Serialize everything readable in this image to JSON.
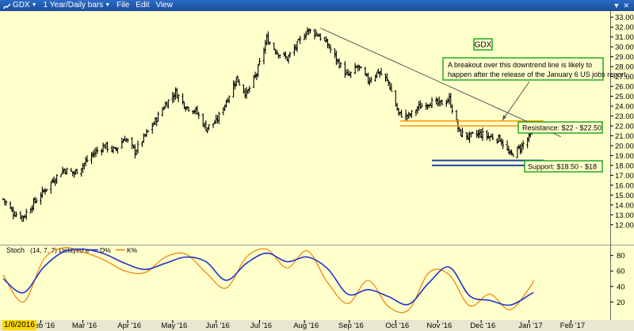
{
  "window": {
    "symbol": "GDX",
    "timeframe": "1 Year/Daily bars",
    "menus": [
      "File",
      "Edit",
      "View"
    ]
  },
  "colors": {
    "background": "#ffffcc",
    "bars": "#000000",
    "trendline": "#555555",
    "resistance": "#ff9900",
    "support": "#1f3fa8",
    "annotation_border": "#22aa22",
    "stoch_d": "#2233cc",
    "stoch_k": "#f08000"
  },
  "chart_data": [
    {
      "type": "ohlc",
      "title": "GDX",
      "ylim": [
        11.5,
        33.3
      ],
      "y_ticks": [
        "12.00",
        "13.00",
        "14.00",
        "15.00",
        "16.00",
        "17.00",
        "18.00",
        "19.00",
        "20.00",
        "21.00",
        "22.00",
        "23.00",
        "24.00",
        "25.00",
        "26.00",
        "27.00",
        "28.00",
        "29.00",
        "30.00",
        "31.00",
        "32.00",
        "33.00"
      ],
      "x_ticks": [
        "Feb '16",
        "Mar '16",
        "Apr '16",
        "May '16",
        "Jun '16",
        "Jul '16",
        "Aug '16",
        "Sep '16",
        "Oct '16",
        "Nov '16",
        "Dec '16",
        "Jan '17",
        "Feb '17"
      ],
      "current_date_label": "1/6/2016",
      "weekly_close": [
        [
          "2016-01-06",
          14.6
        ],
        [
          "2016-01-13",
          13.2
        ],
        [
          "2016-01-20",
          12.8
        ],
        [
          "2016-01-27",
          14.2
        ],
        [
          "2016-02-03",
          15.4
        ],
        [
          "2016-02-10",
          16.6
        ],
        [
          "2016-02-17",
          17.6
        ],
        [
          "2016-02-24",
          17.2
        ],
        [
          "2016-03-02",
          18.2
        ],
        [
          "2016-03-09",
          19.3
        ],
        [
          "2016-03-16",
          20.0
        ],
        [
          "2016-03-23",
          19.5
        ],
        [
          "2016-03-30",
          20.8
        ],
        [
          "2016-04-06",
          19.4
        ],
        [
          "2016-04-13",
          21.0
        ],
        [
          "2016-04-20",
          22.5
        ],
        [
          "2016-04-27",
          24.2
        ],
        [
          "2016-05-04",
          25.4
        ],
        [
          "2016-05-11",
          24.0
        ],
        [
          "2016-05-18",
          23.5
        ],
        [
          "2016-05-25",
          21.8
        ],
        [
          "2016-06-01",
          22.4
        ],
        [
          "2016-06-08",
          24.5
        ],
        [
          "2016-06-15",
          26.8
        ],
        [
          "2016-06-22",
          25.2
        ],
        [
          "2016-06-29",
          27.3
        ],
        [
          "2016-07-06",
          30.8
        ],
        [
          "2016-07-13",
          29.5
        ],
        [
          "2016-07-20",
          28.8
        ],
        [
          "2016-07-27",
          30.2
        ],
        [
          "2016-08-03",
          31.7
        ],
        [
          "2016-08-10",
          31.3
        ],
        [
          "2016-08-17",
          30.2
        ],
        [
          "2016-08-24",
          28.5
        ],
        [
          "2016-08-31",
          27.0
        ],
        [
          "2016-09-07",
          28.0
        ],
        [
          "2016-09-14",
          26.6
        ],
        [
          "2016-09-21",
          27.5
        ],
        [
          "2016-09-28",
          26.4
        ],
        [
          "2016-10-05",
          23.2
        ],
        [
          "2016-10-12",
          23.0
        ],
        [
          "2016-10-19",
          23.9
        ],
        [
          "2016-10-26",
          24.4
        ],
        [
          "2016-11-02",
          24.2
        ],
        [
          "2016-11-09",
          24.7
        ],
        [
          "2016-11-16",
          21.3
        ],
        [
          "2016-11-23",
          20.9
        ],
        [
          "2016-11-30",
          21.2
        ],
        [
          "2016-12-07",
          20.9
        ],
        [
          "2016-12-14",
          20.7
        ],
        [
          "2016-12-21",
          19.0
        ],
        [
          "2016-12-28",
          19.8
        ],
        [
          "2017-01-04",
          21.0
        ],
        [
          "2017-01-06",
          21.9
        ]
      ],
      "trendline": {
        "from": [
          "2016-08-12",
          31.9
        ],
        "to": [
          "2017-01-25",
          20.9
        ]
      },
      "resistance": [
        22.0,
        22.5
      ],
      "support": [
        18.5,
        18.0
      ],
      "annotations": {
        "symbol_box": "GDX",
        "note": "A breakout over this downtrend line is likely to happen after the release of the January 6 US jobs report.",
        "resistance_label": "Resistance: $22 - $22.50",
        "support_label": "Support: $18.50 - $18"
      }
    },
    {
      "type": "line",
      "title": "Stoch",
      "params": "(14, 7, 7) Delayed e",
      "ylim": [
        5,
        95
      ],
      "y_ticks": [
        "20",
        "40",
        "60",
        "80"
      ],
      "series": [
        {
          "name": "D%",
          "values": [
            [
              "2016-01-06",
              50
            ],
            [
              "2016-01-20",
              32
            ],
            [
              "2016-02-03",
              65
            ],
            [
              "2016-02-17",
              85
            ],
            [
              "2016-03-02",
              88
            ],
            [
              "2016-03-16",
              82
            ],
            [
              "2016-03-30",
              70
            ],
            [
              "2016-04-13",
              62
            ],
            [
              "2016-04-27",
              70
            ],
            [
              "2016-05-11",
              78
            ],
            [
              "2016-05-25",
              72
            ],
            [
              "2016-06-08",
              48
            ],
            [
              "2016-06-22",
              70
            ],
            [
              "2016-07-06",
              83
            ],
            [
              "2016-07-20",
              72
            ],
            [
              "2016-08-03",
              78
            ],
            [
              "2016-08-17",
              63
            ],
            [
              "2016-08-31",
              30
            ],
            [
              "2016-09-14",
              36
            ],
            [
              "2016-09-28",
              27
            ],
            [
              "2016-10-12",
              17
            ],
            [
              "2016-10-26",
              45
            ],
            [
              "2016-11-09",
              65
            ],
            [
              "2016-11-23",
              28
            ],
            [
              "2016-12-07",
              22
            ],
            [
              "2016-12-21",
              16
            ],
            [
              "2017-01-04",
              30
            ],
            [
              "2017-01-06",
              32
            ]
          ]
        },
        {
          "name": "K%",
          "values": [
            [
              "2016-01-06",
              55
            ],
            [
              "2016-01-20",
              20
            ],
            [
              "2016-02-03",
              75
            ],
            [
              "2016-02-17",
              90
            ],
            [
              "2016-03-02",
              84
            ],
            [
              "2016-03-16",
              74
            ],
            [
              "2016-03-30",
              60
            ],
            [
              "2016-04-13",
              58
            ],
            [
              "2016-04-27",
              78
            ],
            [
              "2016-05-11",
              82
            ],
            [
              "2016-05-25",
              58
            ],
            [
              "2016-06-08",
              38
            ],
            [
              "2016-06-22",
              78
            ],
            [
              "2016-07-06",
              88
            ],
            [
              "2016-07-20",
              64
            ],
            [
              "2016-08-03",
              86
            ],
            [
              "2016-08-17",
              45
            ],
            [
              "2016-08-31",
              18
            ],
            [
              "2016-09-14",
              48
            ],
            [
              "2016-09-28",
              14
            ],
            [
              "2016-10-12",
              10
            ],
            [
              "2016-10-26",
              58
            ],
            [
              "2016-11-09",
              55
            ],
            [
              "2016-11-23",
              15
            ],
            [
              "2016-12-07",
              30
            ],
            [
              "2016-12-21",
              10
            ],
            [
              "2017-01-04",
              40
            ],
            [
              "2017-01-06",
              48
            ]
          ]
        }
      ]
    }
  ]
}
